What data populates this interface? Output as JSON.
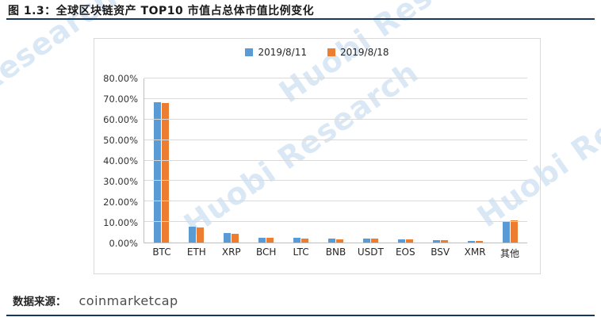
{
  "figure": {
    "title": "图 1.3：全球区块链资产 TOP10 市值占总体市值比例变化",
    "source_label": "数据来源：",
    "source_value": "coinmarketcap",
    "watermark": "Huobi Research",
    "accent_color": "#17375E"
  },
  "chart_data": {
    "type": "bar",
    "title": "全球区块链资产 TOP10 市值占总体市值比例变化",
    "categories": [
      "BTC",
      "ETH",
      "XRP",
      "BCH",
      "LTC",
      "BNB",
      "USDT",
      "EOS",
      "BSV",
      "XMR",
      "其他"
    ],
    "series": [
      {
        "name": "2019/8/11",
        "color": "#5B9BD5",
        "values": [
          68.6,
          7.8,
          4.5,
          2.3,
          2.3,
          1.8,
          1.8,
          1.7,
          1.2,
          0.9,
          10.6
        ]
      },
      {
        "name": "2019/8/18",
        "color": "#ED7D31",
        "values": [
          67.9,
          7.2,
          4.4,
          2.2,
          2.1,
          1.7,
          1.9,
          1.6,
          1.1,
          0.8,
          11.0
        ]
      }
    ],
    "xlabel": "",
    "ylabel": "",
    "ylim": [
      0,
      80
    ],
    "ytick_step": 10,
    "ytick_format": "0.00%",
    "grid": true,
    "legend_position": "top"
  }
}
